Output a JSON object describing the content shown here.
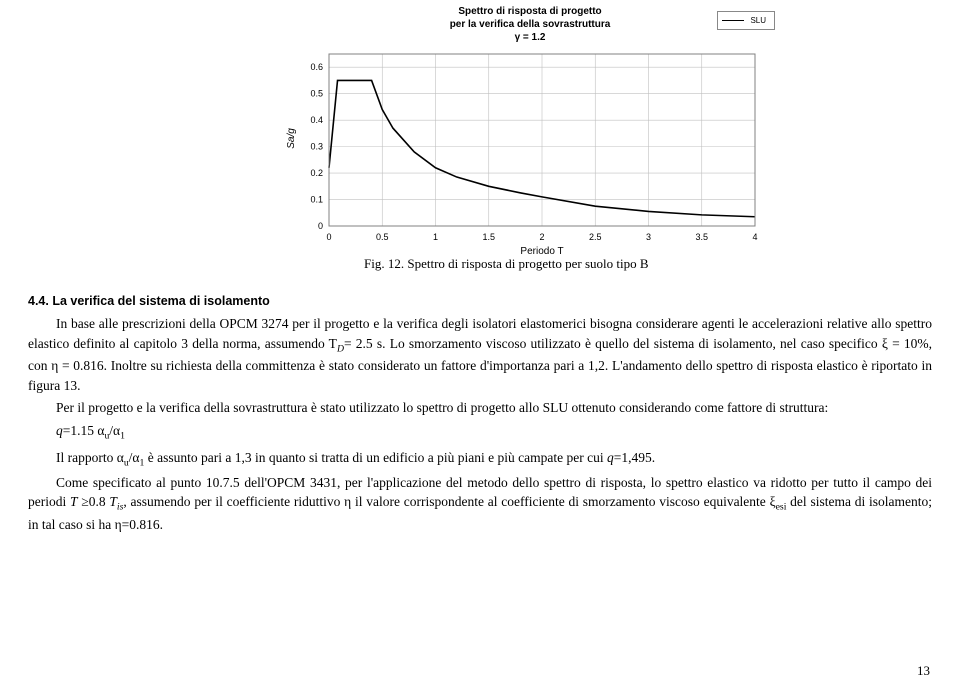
{
  "chart": {
    "title_line1": "Spettro di risposta di progetto",
    "title_line2": "per la verifica della sovrastruttura",
    "title_line3": "γ = 1.2",
    "legend_label": "SLU",
    "xlabel": "Periodo T",
    "ylabel": "Sa/g",
    "xlim": [
      0,
      4
    ],
    "ylim": [
      0,
      0.65
    ],
    "xticks": [
      0,
      0.5,
      1,
      1.5,
      2,
      2.5,
      3,
      3.5,
      4
    ],
    "yticks": [
      0,
      0.1,
      0.2,
      0.3,
      0.4,
      0.5,
      0.6
    ],
    "grid_color": "#c0c0c0",
    "axis_color": "#808080",
    "line_color": "#000000",
    "line_width": 1.6,
    "background_color": "#ffffff",
    "title_fontsize": 10,
    "tick_fontsize": 9,
    "series": [
      [
        0,
        0.22
      ],
      [
        0.08,
        0.55
      ],
      [
        0.15,
        0.55
      ],
      [
        0.4,
        0.55
      ],
      [
        0.5,
        0.44
      ],
      [
        0.6,
        0.37
      ],
      [
        0.8,
        0.28
      ],
      [
        1.0,
        0.22
      ],
      [
        1.2,
        0.185
      ],
      [
        1.5,
        0.15
      ],
      [
        1.8,
        0.125
      ],
      [
        2.0,
        0.11
      ],
      [
        2.5,
        0.075
      ],
      [
        3.0,
        0.055
      ],
      [
        3.5,
        0.042
      ],
      [
        4.0,
        0.035
      ]
    ]
  },
  "caption": "Fig. 12. Spettro di risposta di progetto per suolo tipo B",
  "section": {
    "heading": "4.4. La verifica del sistema di isolamento",
    "p1": "In base alle prescrizioni della OPCM 3274 per il progetto e la verifica degli isolatori elastomerici bisogna considerare agenti le accelerazioni relative allo spettro elastico definito al capitolo 3 della norma, assumendo T",
    "p1_sub": "D",
    "p1_cont": "= 2.5 s. Lo smorzamento viscoso utilizzato è quello del sistema di isolamento, nel caso specifico ξ = 10%, con η = 0.816. Inoltre su richiesta della committenza è stato considerato un fattore d'importanza pari a 1,2. L'andamento dello spettro di risposta elastico è riportato in figura 13.",
    "p2": "Per il progetto e la verifica della sovrastruttura è stato utilizzato lo spettro di progetto allo SLU ottenuto considerando come fattore di struttura:",
    "eq_q": "q",
    "eq_rest": "=1.15 α",
    "eq_sub1": "u",
    "eq_slash": "/α",
    "eq_sub2": "1",
    "p3a": "Il rapporto α",
    "p3a_sub1": "u",
    "p3a_mid": "/α",
    "p3a_sub2": "1",
    "p3a_cont": " è assunto pari a 1,3 in quanto si tratta di un edificio a più piani e più campate per cui ",
    "p3a_q": "q",
    "p3a_end": "=1,495.",
    "p4": "Come specificato al punto 10.7.5 dell'OPCM 3431, per l'applicazione del metodo dello spettro di risposta, lo spettro elastico va ridotto per tutto il campo dei periodi ",
    "p4_T": "T",
    "p4_ge": " ≥0.8 ",
    "p4_Tis": "T",
    "p4_Tis_sub": "is",
    "p4_cont": ", assumendo per il coefficiente riduttivo η il valore corrispondente al coefficiente di smorzamento viscoso equivalente ξ",
    "p4_xi_sub": "esi",
    "p4_end": " del sistema di isolamento; in tal caso si ha η=0.816."
  },
  "pagenum": "13"
}
